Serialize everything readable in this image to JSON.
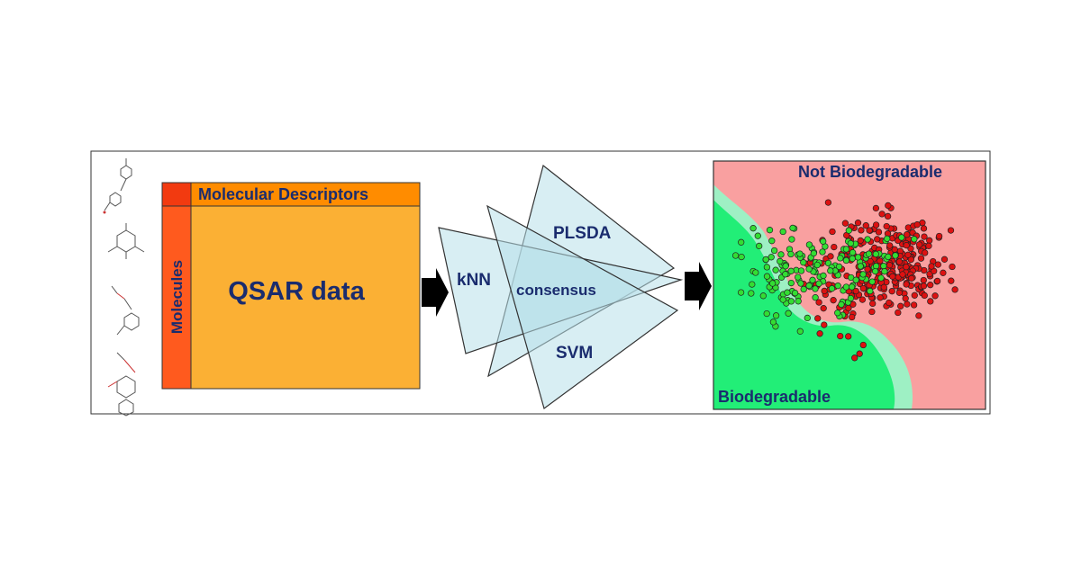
{
  "matrix": {
    "header_label": "Molecular Descriptors",
    "side_label": "Molecules",
    "body_label": "QSAR data"
  },
  "models": {
    "plsda": "PLSDA",
    "knn": "kNN",
    "consensus": "consensus",
    "svm": "SVM"
  },
  "result_plot": {
    "top_label": "Not Biodegradable",
    "bottom_label": "Biodegradable"
  },
  "colors": {
    "matrix_body": "#FBB034",
    "matrix_header": "#FF8C00",
    "matrix_side": "#FF5A1E",
    "matrix_corner": "#F23A10",
    "label_text": "#1A2C6E",
    "triangle_fill": "#B8E0EA",
    "region_not_biodegradable": "#F9A0A0",
    "region_biodegradable": "#22EE77",
    "region_margin": "#9EF0C4",
    "point_not_biodegradable": "#DD1111",
    "point_biodegradable": "#33DD33"
  }
}
